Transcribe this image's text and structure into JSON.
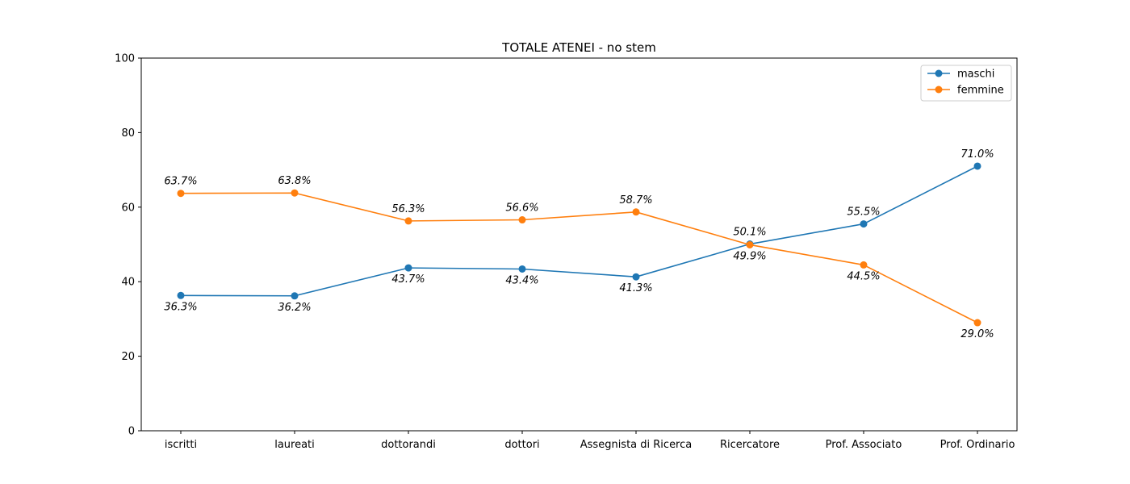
{
  "chart_data": {
    "type": "line",
    "title": "TOTALE ATENEI - no stem",
    "xlabel": "",
    "ylabel": "",
    "categories": [
      "iscritti",
      "laureati",
      "dottorandi",
      "dottori",
      "Assegnista di Ricerca",
      "Ricercatore",
      "Prof. Associato",
      "Prof. Ordinario"
    ],
    "ylim": [
      0,
      100
    ],
    "yticks": [
      0,
      20,
      40,
      60,
      80,
      100
    ],
    "grid": false,
    "legend_position": "top-right",
    "series": [
      {
        "name": "maschi",
        "color": "#1f77b4",
        "values": [
          36.3,
          36.2,
          43.7,
          43.4,
          41.3,
          50.1,
          55.5,
          71.0
        ],
        "labels": [
          "36.3%",
          "36.2%",
          "43.7%",
          "43.4%",
          "41.3%",
          "50.1%",
          "55.5%",
          "71.0%"
        ]
      },
      {
        "name": "femmine",
        "color": "#ff7f0e",
        "values": [
          63.7,
          63.8,
          56.3,
          56.6,
          58.7,
          49.9,
          44.5,
          29.0
        ],
        "labels": [
          "63.7%",
          "63.8%",
          "56.3%",
          "56.6%",
          "58.7%",
          "49.9%",
          "44.5%",
          "29.0%"
        ]
      }
    ]
  }
}
